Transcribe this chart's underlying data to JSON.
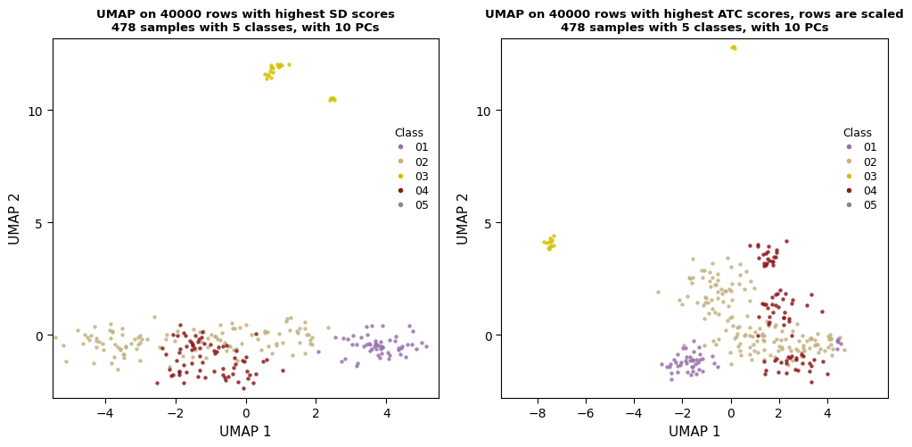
{
  "title1": "UMAP on 40000 rows with highest SD scores\n478 samples with 5 classes, with 10 PCs",
  "title2": "UMAP on 40000 rows with highest ATC scores, rows are scaled\n478 samples with 5 classes, with 10 PCs",
  "xlabel": "UMAP 1",
  "ylabel": "UMAP 2",
  "class_colors": {
    "01": "#9970AB",
    "02": "#C2B280",
    "03": "#D4C000",
    "04": "#8B1A1A",
    "05": "#888888"
  },
  "legend_title": "Class",
  "classes": [
    "01",
    "02",
    "03",
    "04",
    "05"
  ],
  "plot1": {
    "xlim": [
      -5.5,
      5.5
    ],
    "ylim": [
      -2.8,
      13.2
    ],
    "xticks": [
      -4,
      -2,
      0,
      2,
      4
    ],
    "yticks": [
      0,
      5,
      10
    ]
  },
  "plot2": {
    "xlim": [
      -9.5,
      6.5
    ],
    "ylim": [
      -2.8,
      13.2
    ],
    "xticks": [
      -8,
      -6,
      -4,
      -2,
      0,
      2,
      4
    ],
    "yticks": [
      0,
      5,
      10
    ]
  }
}
